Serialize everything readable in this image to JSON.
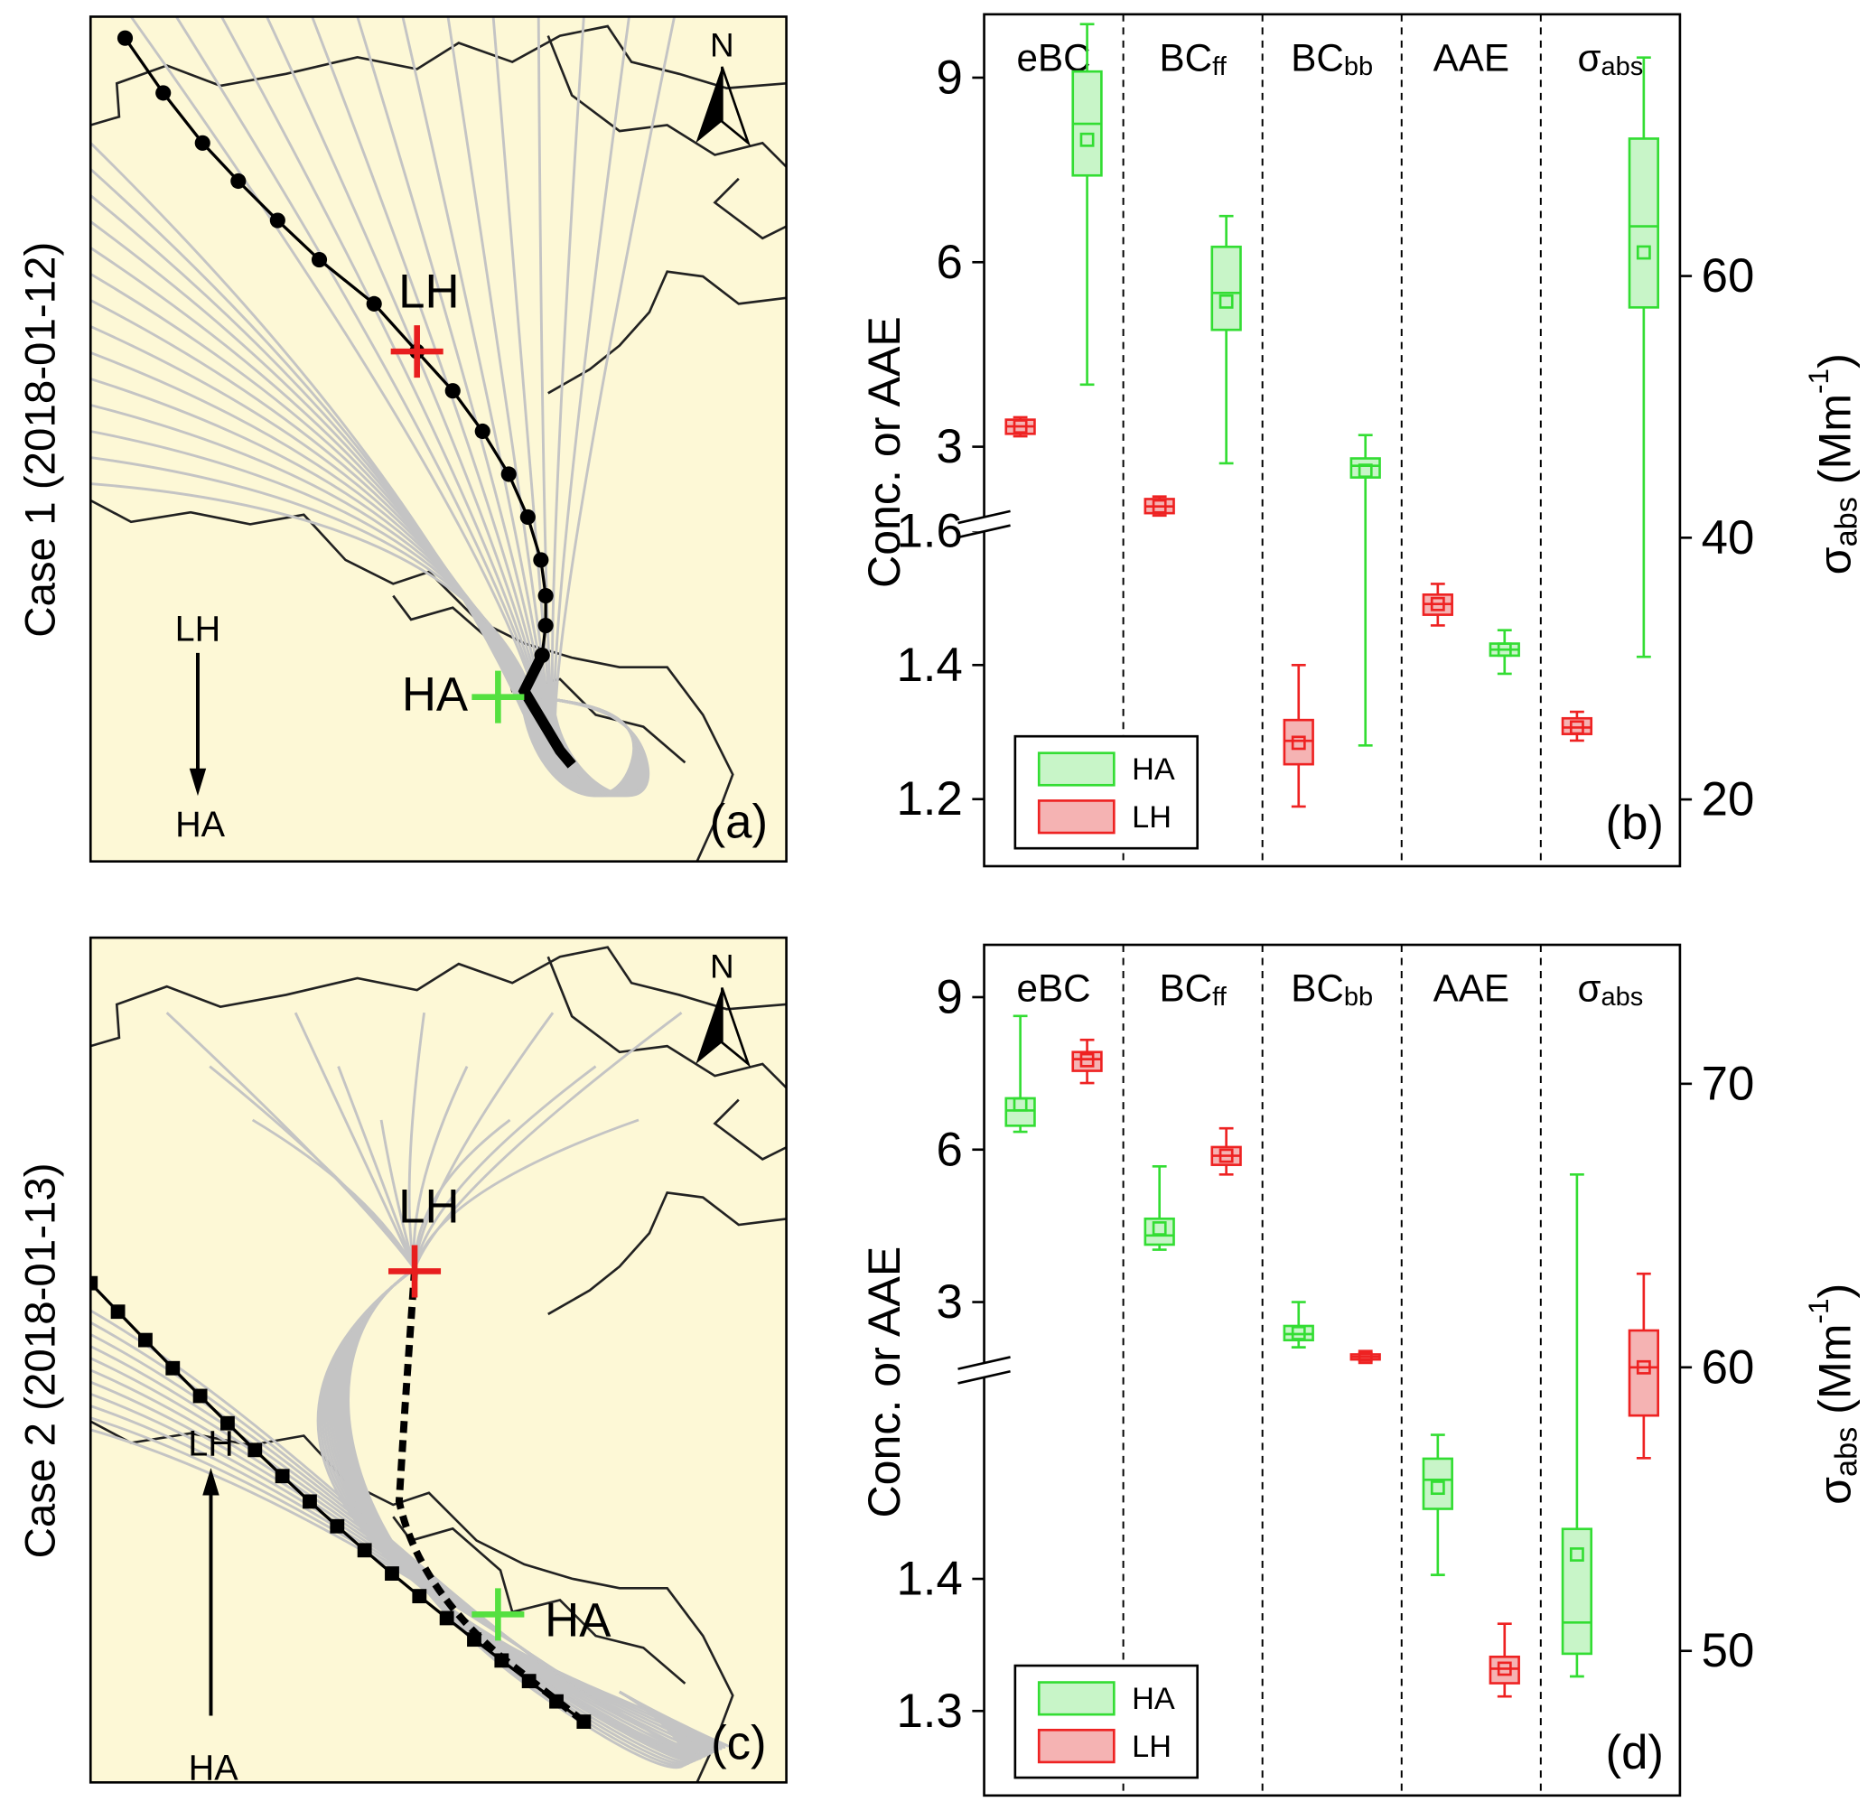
{
  "chart_data": [
    {
      "type": "box",
      "panel_label": "(b)",
      "categories": [
        "eBC",
        "BC",
        "BC",
        "AAE",
        "σ"
      ],
      "category_subscripts": [
        null,
        "ff",
        "bb",
        null,
        "abs"
      ],
      "ylabel": "Conc. or AAE",
      "y2label": [
        "σ",
        "abs",
        " (Mm",
        "-1",
        ")"
      ],
      "ylim_upper": [
        1.74,
        10.03
      ],
      "yticks_upper": [
        3,
        6,
        9
      ],
      "ylim_lower": [
        1.1,
        1.61
      ],
      "yticks_lower": [
        1.2,
        1.4,
        1.6
      ],
      "y2lim": [
        14.9,
        80
      ],
      "y2ticks": [
        20,
        40,
        60
      ],
      "group_axis": [
        "y",
        "y",
        "y",
        "y",
        "y2"
      ],
      "legend": "lower left",
      "legend_reversed": true,
      "series": [
        {
          "name": "LH",
          "color": "#ee2222",
          "fill": "#f5b3b3",
          "whisker_high": [
            3.48,
            2.19,
            1.4,
            1.521,
            26.7
          ],
          "q3": [
            3.44,
            2.15,
            1.318,
            1.505,
            26.2
          ],
          "median": [
            3.33,
            2.03,
            1.287,
            1.491,
            25.5
          ],
          "mean": [
            3.33,
            2.03,
            1.284,
            1.491,
            25.5
          ],
          "q1": [
            3.21,
            1.92,
            1.252,
            1.475,
            25.0
          ],
          "whisker_low": [
            3.17,
            1.88,
            1.189,
            1.459,
            24.5
          ]
        },
        {
          "name": "HA",
          "color": "#33dd33",
          "fill": "#c8f5c8",
          "whisker_high": [
            9.87,
            6.75,
            3.19,
            1.452,
            76.7
          ],
          "q3": [
            9.1,
            6.25,
            2.81,
            1.432,
            70.5
          ],
          "median": [
            8.25,
            5.5,
            2.69,
            1.423,
            63.8
          ],
          "mean": [
            7.99,
            5.36,
            2.61,
            1.423,
            61.8
          ],
          "q1": [
            7.41,
            4.9,
            2.5,
            1.414,
            57.6
          ],
          "whisker_low": [
            4.01,
            2.73,
            1.28,
            1.387,
            30.9
          ]
        }
      ]
    },
    {
      "type": "box",
      "panel_label": "(d)",
      "categories": [
        "eBC",
        "BC",
        "BC",
        "AAE",
        "σ"
      ],
      "category_subscripts": [
        null,
        "ff",
        "bb",
        null,
        "abs"
      ],
      "ylabel": "Conc. or AAE",
      "y2label": [
        "σ",
        "abs",
        " (Mm",
        "-1",
        ")"
      ],
      "ylim_upper": [
        1.66,
        10.03
      ],
      "yticks_upper": [
        3,
        6,
        9
      ],
      "ylim_lower": [
        1.236,
        1.558
      ],
      "yticks_lower": [
        1.3,
        1.4
      ],
      "y2lim": [
        44.9,
        74.9
      ],
      "y2ticks": [
        50,
        60,
        70
      ],
      "group_axis": [
        "y",
        "y",
        "y",
        "y",
        "y2"
      ],
      "legend": "lower left",
      "legend_reversed": false,
      "series": [
        {
          "name": "HA",
          "color": "#33dd33",
          "fill": "#c8f5c8",
          "whisker_high": [
            8.63,
            5.67,
            3.0,
            1.509,
            66.8
          ],
          "q3": [
            7.01,
            4.64,
            2.53,
            1.491,
            54.3
          ],
          "median": [
            6.77,
            4.31,
            2.37,
            1.475,
            51.0
          ],
          "mean": [
            6.89,
            4.45,
            2.39,
            1.469,
            53.4
          ],
          "q1": [
            6.47,
            4.13,
            2.25,
            1.453,
            49.9
          ],
          "whisker_low": [
            6.35,
            4.03,
            2.11,
            1.403,
            49.1
          ]
        },
        {
          "name": "LH",
          "color": "#ee2222",
          "fill": "#f5b3b3",
          "whisker_high": [
            8.16,
            6.42,
            1.99,
            1.366,
            63.3
          ],
          "q3": [
            7.92,
            6.05,
            1.97,
            1.341,
            61.3
          ],
          "median": [
            7.78,
            5.88,
            1.92,
            1.332,
            60.0
          ],
          "mean": [
            7.76,
            5.88,
            1.92,
            1.332,
            60.0
          ],
          "q1": [
            7.55,
            5.7,
            1.87,
            1.321,
            58.3
          ],
          "whisker_low": [
            7.31,
            5.51,
            1.85,
            1.311,
            56.8
          ]
        }
      ]
    }
  ],
  "maps": [
    {
      "case_label": "Case 1 (2018-01-12)",
      "site_lh": "LH",
      "site_ha": "HA",
      "arrow_top": "LH",
      "arrow_bottom": "HA",
      "north": "N",
      "panel_label": "(a)"
    },
    {
      "case_label": "Case 2 (2018-01-13)",
      "site_lh": "LH",
      "site_ha": "HA",
      "arrow_top": "LH",
      "arrow_bottom": "HA",
      "north": "N",
      "panel_label": "(c)"
    }
  ]
}
